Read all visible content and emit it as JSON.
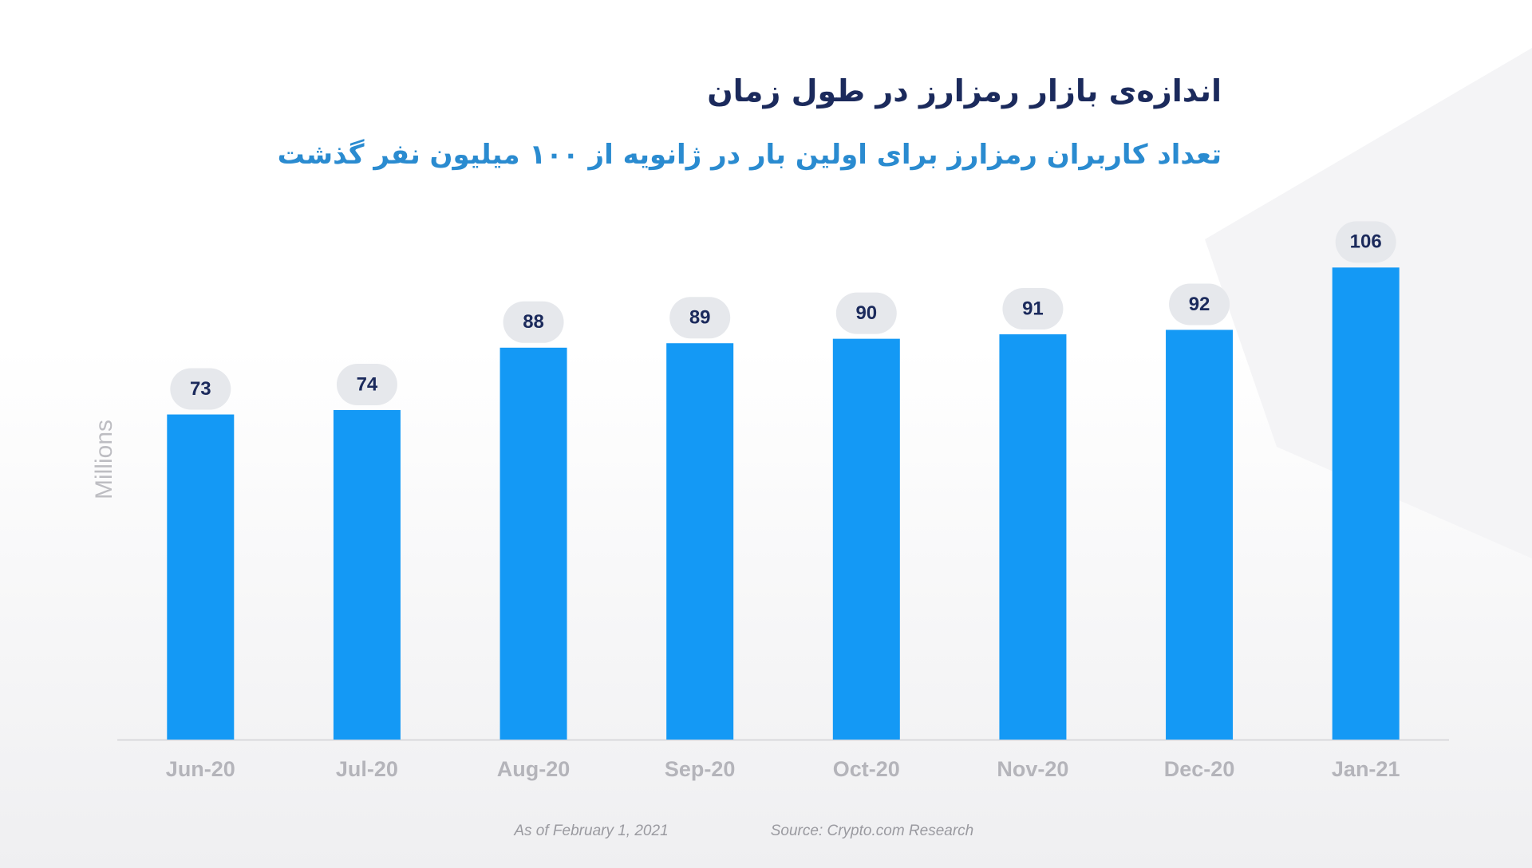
{
  "chart_data": {
    "type": "bar",
    "title": "اندازه‌ی بازار رمزارز در طول زمان",
    "subtitle": "تعداد کاربران رمزارز برای اولین بار در ژانویه از ۱۰۰ میلیون نفر گذشت",
    "y_label": "Millions",
    "categories": [
      "Jun-20",
      "Jul-20",
      "Aug-20",
      "Sep-20",
      "Oct-20",
      "Nov-20",
      "Dec-20",
      "Jan-21"
    ],
    "values": [
      73,
      74,
      88,
      89,
      90,
      91,
      92,
      106
    ],
    "color": "#1499f5",
    "ylim": [
      0,
      110
    ],
    "notes": [
      "As of February 1, 2021",
      "Source: Crypto.com Research"
    ]
  }
}
